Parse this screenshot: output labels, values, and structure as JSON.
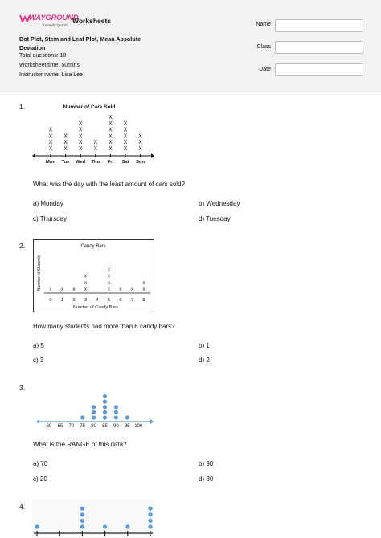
{
  "header": {
    "logo_main": "WAYGROUND",
    "logo_sub": "formerly Quizizz",
    "brand_title": "Worksheets",
    "title_line1": "Dot Plot, Stem and Leaf Plot, Mean Absolute",
    "title_line2": "Deviation",
    "total_questions": "Total questions: 10",
    "worksheet_time": "Worksheet time: 50mins",
    "instructor": "Instructor name: Lisa Lee",
    "fields": {
      "name_label": "Name",
      "class_label": "Class",
      "date_label": "Date"
    }
  },
  "questions": [
    {
      "number": "1.",
      "text": "What was the day with the least amount of cars sold?",
      "options": {
        "a": "a)  Monday",
        "b": "b)  Wednesday",
        "c": "c)  Thursday",
        "d": "d)  Tuesday"
      }
    },
    {
      "number": "2.",
      "text": "How many students had more than 6 candy bars?",
      "options": {
        "a": "a)  5",
        "b": "b)  1",
        "c": "c)  3",
        "d": "d)  2"
      }
    },
    {
      "number": "3.",
      "text": "What is the RANGE of this data?",
      "options": {
        "a": "a)  70",
        "b": "b)  90",
        "c": "c)  20",
        "d": "d)  80"
      }
    },
    {
      "number": "4."
    }
  ],
  "chart_data": [
    {
      "type": "scatter",
      "title": "Number of Cars Sold",
      "categories": [
        "Mon",
        "Tue",
        "Wed",
        "Thu",
        "Fri",
        "Sat",
        "Sun"
      ],
      "values": [
        4,
        3,
        5,
        2,
        6,
        5,
        3
      ],
      "marker": "X"
    },
    {
      "type": "scatter",
      "title": "Candy Bars",
      "xlabel": "Number of Candy Bars",
      "ylabel": "Number of Students",
      "categories": [
        "0",
        "1",
        "2",
        "3",
        "4",
        "5",
        "6",
        "7",
        "8"
      ],
      "values": [
        1,
        1,
        1,
        3,
        0,
        4,
        1,
        1,
        2
      ],
      "marker": "x"
    },
    {
      "type": "scatter",
      "categories": [
        "60",
        "65",
        "70",
        "75",
        "80",
        "85",
        "90",
        "95",
        "100"
      ],
      "values": [
        0,
        0,
        0,
        1,
        3,
        5,
        3,
        1,
        0
      ],
      "marker": "dot",
      "color": "#5b9bd5"
    },
    {
      "type": "scatter",
      "values": [
        1,
        0,
        4,
        1,
        1,
        4
      ],
      "marker": "dot",
      "color": "#5b9bd5"
    }
  ]
}
